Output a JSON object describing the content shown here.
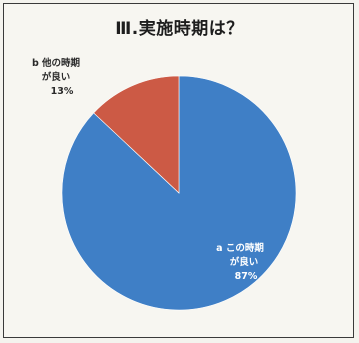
{
  "chart_data": {
    "type": "pie",
    "title": "Ⅲ.実施時期は？",
    "slices": [
      {
        "label_line1": "a この時期",
        "label_line2": "が良い",
        "percent_label": "87%",
        "value": 87,
        "color": "#3f7fc6"
      },
      {
        "label_line1": "b 他の時期",
        "label_line2": "が良い",
        "percent_label": "13%",
        "value": 13,
        "color": "#cc5a45"
      }
    ],
    "start_angle_deg": 0,
    "direction": "clockwise",
    "label_color_inside": "#ffffff",
    "label_color_outside": "#2a2a2a"
  }
}
